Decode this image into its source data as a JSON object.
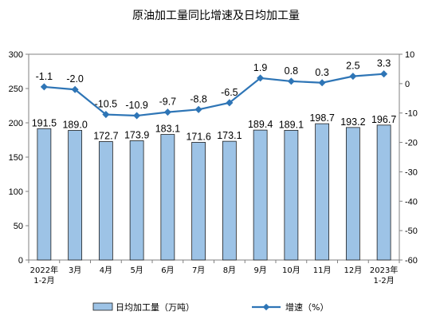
{
  "chart_data": {
    "type": "bar+line",
    "title": "原油加工量同比增速及日均加工量",
    "categories": [
      [
        "2022年",
        "1-2月"
      ],
      [
        "3月"
      ],
      [
        "4月"
      ],
      [
        "5月"
      ],
      [
        "6月"
      ],
      [
        "7月"
      ],
      [
        "8月"
      ],
      [
        "9月"
      ],
      [
        "10月"
      ],
      [
        "11月"
      ],
      [
        "12月"
      ],
      [
        "2023年",
        "1-2月"
      ]
    ],
    "series": [
      {
        "name": "日均加工量（万吨）",
        "type": "bar",
        "axis": "left",
        "color": "#9dc3e6",
        "values": [
          191.5,
          189.0,
          172.7,
          173.9,
          183.1,
          171.6,
          173.1,
          189.4,
          189.1,
          198.7,
          193.2,
          196.7
        ],
        "labels": [
          "191.5",
          "189.0",
          "172.7",
          "173.9",
          "183.1",
          "171.6",
          "173.1",
          "189.4",
          "189.1",
          "198.7",
          "193.2",
          "196.7"
        ]
      },
      {
        "name": "增速（%）",
        "type": "line",
        "axis": "right",
        "color": "#2e75b6",
        "values": [
          -1.1,
          -2.0,
          -10.5,
          -10.9,
          -9.7,
          -8.8,
          -6.5,
          1.9,
          0.8,
          0.3,
          2.5,
          3.3
        ],
        "labels": [
          "-1.1",
          "-2.0",
          "-10.5",
          "-10.9",
          "-9.7",
          "-8.8",
          "-6.5",
          "1.9",
          "0.8",
          "0.3",
          "2.5",
          "3.3"
        ]
      }
    ],
    "y_left": {
      "min": 0,
      "max": 300,
      "ticks": [
        "0",
        "50",
        "100",
        "150",
        "200",
        "250",
        "300"
      ]
    },
    "y_right": {
      "min": -60,
      "max": 10,
      "ticks": [
        "-60",
        "-50",
        "-40",
        "-30",
        "-20",
        "-10",
        "0",
        "10"
      ]
    },
    "grid": false,
    "legend_position": "bottom"
  }
}
